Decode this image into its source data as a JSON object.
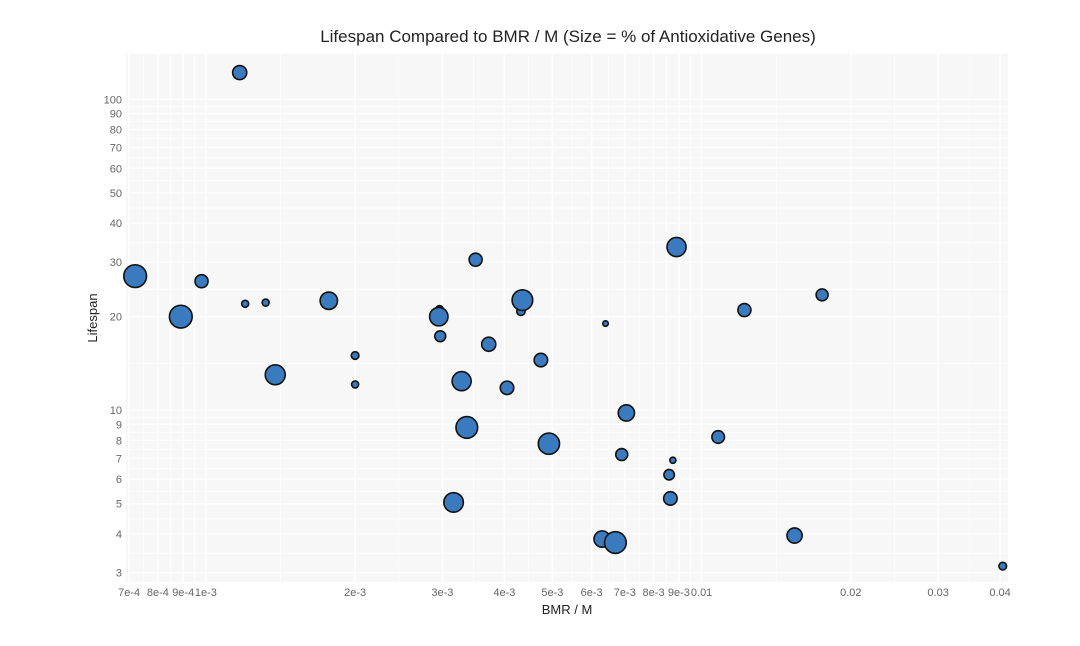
{
  "chart_data": {
    "type": "scatter",
    "title": "Lifespan Compared to BMR / M (Size = % of Antioxidative Genes)",
    "xlabel": "BMR / M",
    "ylabel": "Lifespan",
    "x_scale": "log",
    "y_scale": "log",
    "xlim": [
      0.00069,
      0.0415
    ],
    "ylim": [
      2.8,
      140
    ],
    "background": "#f7f7f7",
    "point_fill": "#3a7bbf",
    "point_stroke": "#111111",
    "grid": true,
    "x_ticks": [
      {
        "value": 0.0007,
        "label": "7e-4"
      },
      {
        "value": 0.0008,
        "label": "8e-4"
      },
      {
        "value": 0.0009,
        "label": "9e-4"
      },
      {
        "value": 0.001,
        "label": "1e-3"
      },
      {
        "value": 0.002,
        "label": "2e-3"
      },
      {
        "value": 0.003,
        "label": "3e-3"
      },
      {
        "value": 0.004,
        "label": "4e-3"
      },
      {
        "value": 0.005,
        "label": "5e-3"
      },
      {
        "value": 0.006,
        "label": "6e-3"
      },
      {
        "value": 0.007,
        "label": "7e-3"
      },
      {
        "value": 0.008,
        "label": "8e-3"
      },
      {
        "value": 0.009,
        "label": "9e-3"
      },
      {
        "value": 0.01,
        "label": "0.01"
      },
      {
        "value": 0.02,
        "label": "0.02"
      },
      {
        "value": 0.03,
        "label": "0.03"
      },
      {
        "value": 0.04,
        "label": "0.04"
      }
    ],
    "y_ticks": [
      {
        "value": 3,
        "label": "3"
      },
      {
        "value": 4,
        "label": "4"
      },
      {
        "value": 5,
        "label": "5"
      },
      {
        "value": 6,
        "label": "6"
      },
      {
        "value": 7,
        "label": "7"
      },
      {
        "value": 8,
        "label": "8"
      },
      {
        "value": 9,
        "label": "9"
      },
      {
        "value": 10,
        "label": "10"
      },
      {
        "value": 20,
        "label": "20"
      },
      {
        "value": 30,
        "label": "30"
      },
      {
        "value": 40,
        "label": "40"
      },
      {
        "value": 50,
        "label": "50"
      },
      {
        "value": 60,
        "label": "60"
      },
      {
        "value": 70,
        "label": "70"
      },
      {
        "value": 80,
        "label": "80"
      },
      {
        "value": 90,
        "label": "90"
      },
      {
        "value": 100,
        "label": "100"
      }
    ],
    "points": [
      {
        "x": 0.00117,
        "y": 122,
        "size": 0.45
      },
      {
        "x": 0.00072,
        "y": 27,
        "size": 0.85
      },
      {
        "x": 0.00089,
        "y": 20,
        "size": 0.85
      },
      {
        "x": 0.00098,
        "y": 26,
        "size": 0.4
      },
      {
        "x": 0.0012,
        "y": 22,
        "size": 0.12
      },
      {
        "x": 0.00132,
        "y": 22.2,
        "size": 0.12
      },
      {
        "x": 0.00138,
        "y": 13,
        "size": 0.72
      },
      {
        "x": 0.00177,
        "y": 22.5,
        "size": 0.6
      },
      {
        "x": 0.002,
        "y": 15,
        "size": 0.15
      },
      {
        "x": 0.002,
        "y": 12.1,
        "size": 0.12
      },
      {
        "x": 0.00296,
        "y": 21.1,
        "size": 0.15
      },
      {
        "x": 0.00295,
        "y": 20,
        "size": 0.65
      },
      {
        "x": 0.00297,
        "y": 17.3,
        "size": 0.3
      },
      {
        "x": 0.00316,
        "y": 5.05,
        "size": 0.7
      },
      {
        "x": 0.00328,
        "y": 12.4,
        "size": 0.68
      },
      {
        "x": 0.00336,
        "y": 8.8,
        "size": 0.8
      },
      {
        "x": 0.0035,
        "y": 30.5,
        "size": 0.4
      },
      {
        "x": 0.00372,
        "y": 16.3,
        "size": 0.45
      },
      {
        "x": 0.00405,
        "y": 11.8,
        "size": 0.42
      },
      {
        "x": 0.00432,
        "y": 20.8,
        "size": 0.18
      },
      {
        "x": 0.00435,
        "y": 22.6,
        "size": 0.75
      },
      {
        "x": 0.00474,
        "y": 14.5,
        "size": 0.42
      },
      {
        "x": 0.00492,
        "y": 7.8,
        "size": 0.78
      },
      {
        "x": 0.0063,
        "y": 3.85,
        "size": 0.55
      },
      {
        "x": 0.0064,
        "y": 19,
        "size": 0.05
      },
      {
        "x": 0.0067,
        "y": 3.75,
        "size": 0.8
      },
      {
        "x": 0.0069,
        "y": 7.2,
        "size": 0.35
      },
      {
        "x": 0.00705,
        "y": 9.8,
        "size": 0.55
      },
      {
        "x": 0.0086,
        "y": 6.2,
        "size": 0.28
      },
      {
        "x": 0.00865,
        "y": 5.2,
        "size": 0.42
      },
      {
        "x": 0.00875,
        "y": 6.9,
        "size": 0.08
      },
      {
        "x": 0.0089,
        "y": 33.5,
        "size": 0.68
      },
      {
        "x": 0.0108,
        "y": 8.2,
        "size": 0.38
      },
      {
        "x": 0.0122,
        "y": 21,
        "size": 0.4
      },
      {
        "x": 0.0154,
        "y": 3.95,
        "size": 0.5
      },
      {
        "x": 0.0175,
        "y": 23.5,
        "size": 0.35
      },
      {
        "x": 0.0405,
        "y": 3.15,
        "size": 0.15
      }
    ]
  }
}
